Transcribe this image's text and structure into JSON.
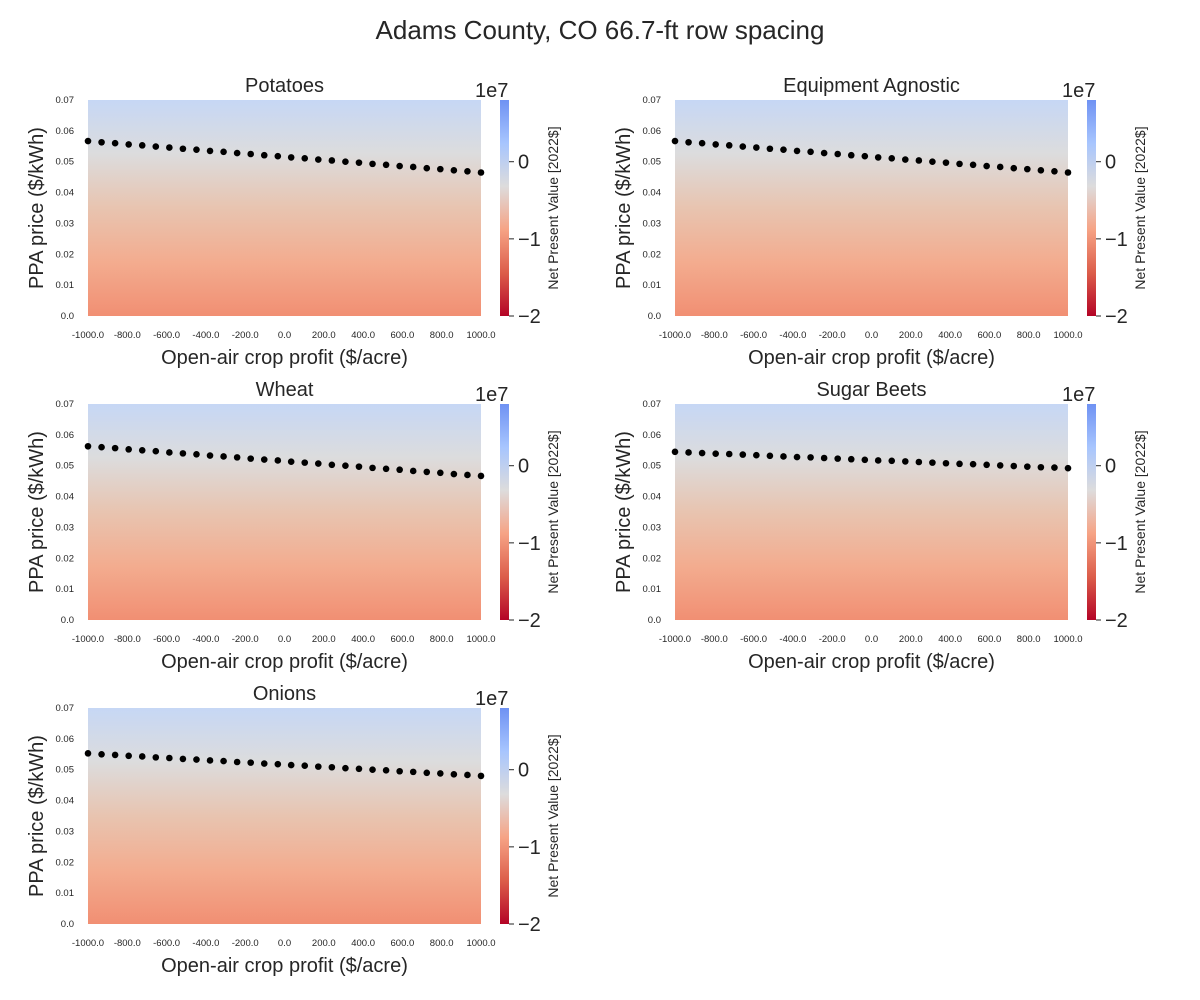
{
  "figure": {
    "title": "Adams County, CO 66.7-ft row spacing"
  },
  "shared": {
    "xlabel": "Open-air crop profit ($/acre)",
    "ylabel": "PPA price ($/kWh)",
    "x_tick_labels": [
      "-1000.0",
      "-800.0",
      "-600.0",
      "-400.0",
      "-200.0",
      "0.0",
      "200.0",
      "400.0",
      "600.0",
      "800.0",
      "1000.0"
    ],
    "y_tick_labels": [
      "0.0",
      "0.01",
      "0.02",
      "0.03",
      "0.04",
      "0.05",
      "0.06",
      "0.07"
    ],
    "colorbar": {
      "label": "Net Present Value [2022$]",
      "offset_text": "1e7",
      "tick_labels": [
        "0",
        "−1",
        "−2"
      ],
      "tick_values": [
        0,
        -1,
        -2
      ],
      "range": [
        -2,
        0.8
      ],
      "colormap": "coolwarm",
      "colors": [
        "#b40426",
        "#dc5d4a",
        "#f6a385",
        "#dddcdc",
        "#a7c5fe",
        "#6f92f3"
      ]
    },
    "heatmap_colors_top_to_bottom": [
      "#c6d7f5",
      "#dcdcdd",
      "#e8c4b0",
      "#f3ac8f",
      "#f18f73"
    ]
  },
  "chart_data": [
    {
      "type": "heatmap",
      "title": "Potatoes",
      "xlabel": "Open-air crop profit ($/acre)",
      "ylabel": "PPA price ($/kWh)",
      "xlim": [
        -1000,
        1000
      ],
      "ylim": [
        0,
        0.07
      ],
      "colorbar_label": "Net Present Value [2022$]",
      "breakeven_line": {
        "x": [
          -1000,
          -931,
          -862,
          -793,
          -724,
          -655,
          -586,
          -517,
          -448,
          -379,
          -310,
          -241,
          -172,
          -103,
          -34,
          34,
          103,
          172,
          241,
          310,
          379,
          448,
          517,
          586,
          655,
          724,
          793,
          862,
          931,
          1000
        ],
        "y": [
          0.0567,
          0.0563,
          0.056,
          0.0556,
          0.0553,
          0.0549,
          0.0546,
          0.0542,
          0.0539,
          0.0535,
          0.0532,
          0.0528,
          0.0525,
          0.0521,
          0.0518,
          0.0514,
          0.0511,
          0.0507,
          0.0504,
          0.05,
          0.0497,
          0.0493,
          0.049,
          0.0486,
          0.0483,
          0.0479,
          0.0476,
          0.0472,
          0.0469,
          0.0465
        ]
      }
    },
    {
      "type": "heatmap",
      "title": "Equipment Agnostic",
      "xlabel": "Open-air crop profit ($/acre)",
      "ylabel": "PPA price ($/kWh)",
      "xlim": [
        -1000,
        1000
      ],
      "ylim": [
        0,
        0.07
      ],
      "colorbar_label": "Net Present Value [2022$]",
      "breakeven_line": {
        "x": [
          -1000,
          -931,
          -862,
          -793,
          -724,
          -655,
          -586,
          -517,
          -448,
          -379,
          -310,
          -241,
          -172,
          -103,
          -34,
          34,
          103,
          172,
          241,
          310,
          379,
          448,
          517,
          586,
          655,
          724,
          793,
          862,
          931,
          1000
        ],
        "y": [
          0.0567,
          0.0563,
          0.056,
          0.0556,
          0.0553,
          0.0549,
          0.0546,
          0.0542,
          0.0539,
          0.0535,
          0.0532,
          0.0528,
          0.0525,
          0.0521,
          0.0518,
          0.0514,
          0.0511,
          0.0507,
          0.0504,
          0.05,
          0.0497,
          0.0493,
          0.049,
          0.0486,
          0.0483,
          0.0479,
          0.0476,
          0.0472,
          0.0469,
          0.0465
        ]
      }
    },
    {
      "type": "heatmap",
      "title": "Wheat",
      "xlabel": "Open-air crop profit ($/acre)",
      "ylabel": "PPA price ($/kWh)",
      "xlim": [
        -1000,
        1000
      ],
      "ylim": [
        0,
        0.07
      ],
      "colorbar_label": "Net Present Value [2022$]",
      "breakeven_line": {
        "x": [
          -1000,
          -931,
          -862,
          -793,
          -724,
          -655,
          -586,
          -517,
          -448,
          -379,
          -310,
          -241,
          -172,
          -103,
          -34,
          34,
          103,
          172,
          241,
          310,
          379,
          448,
          517,
          586,
          655,
          724,
          793,
          862,
          931,
          1000
        ],
        "y": [
          0.0563,
          0.056,
          0.0557,
          0.0553,
          0.055,
          0.0547,
          0.0543,
          0.054,
          0.0537,
          0.0533,
          0.053,
          0.0527,
          0.0523,
          0.052,
          0.0517,
          0.0513,
          0.051,
          0.0507,
          0.0503,
          0.05,
          0.0497,
          0.0493,
          0.049,
          0.0487,
          0.0483,
          0.048,
          0.0477,
          0.0473,
          0.047,
          0.0467
        ]
      }
    },
    {
      "type": "heatmap",
      "title": "Sugar Beets",
      "xlabel": "Open-air crop profit ($/acre)",
      "ylabel": "PPA price ($/kWh)",
      "xlim": [
        -1000,
        1000
      ],
      "ylim": [
        0,
        0.07
      ],
      "colorbar_label": "Net Present Value [2022$]",
      "breakeven_line": {
        "x": [
          -1000,
          -931,
          -862,
          -793,
          -724,
          -655,
          -586,
          -517,
          -448,
          -379,
          -310,
          -241,
          -172,
          -103,
          -34,
          34,
          103,
          172,
          241,
          310,
          379,
          448,
          517,
          586,
          655,
          724,
          793,
          862,
          931,
          1000
        ],
        "y": [
          0.0545,
          0.0543,
          0.0541,
          0.0539,
          0.0538,
          0.0536,
          0.0534,
          0.0532,
          0.053,
          0.0528,
          0.0527,
          0.0525,
          0.0523,
          0.0521,
          0.0519,
          0.0517,
          0.0516,
          0.0514,
          0.0512,
          0.051,
          0.0508,
          0.0506,
          0.0505,
          0.0503,
          0.0501,
          0.0499,
          0.0497,
          0.0495,
          0.0494,
          0.0492
        ]
      }
    },
    {
      "type": "heatmap",
      "title": "Onions",
      "xlabel": "Open-air crop profit ($/acre)",
      "ylabel": "PPA price ($/kWh)",
      "xlim": [
        -1000,
        1000
      ],
      "ylim": [
        0,
        0.07
      ],
      "colorbar_label": "Net Present Value [2022$]",
      "breakeven_line": {
        "x": [
          -1000,
          -931,
          -862,
          -793,
          -724,
          -655,
          -586,
          -517,
          -448,
          -379,
          -310,
          -241,
          -172,
          -103,
          -34,
          34,
          103,
          172,
          241,
          310,
          379,
          448,
          517,
          586,
          655,
          724,
          793,
          862,
          931,
          1000
        ],
        "y": [
          0.0553,
          0.055,
          0.0548,
          0.0545,
          0.0543,
          0.054,
          0.0538,
          0.0535,
          0.0533,
          0.053,
          0.0528,
          0.0525,
          0.0523,
          0.052,
          0.0518,
          0.0515,
          0.0513,
          0.051,
          0.0508,
          0.0505,
          0.0503,
          0.05,
          0.0498,
          0.0495,
          0.0493,
          0.049,
          0.0488,
          0.0485,
          0.0483,
          0.048
        ]
      }
    }
  ]
}
